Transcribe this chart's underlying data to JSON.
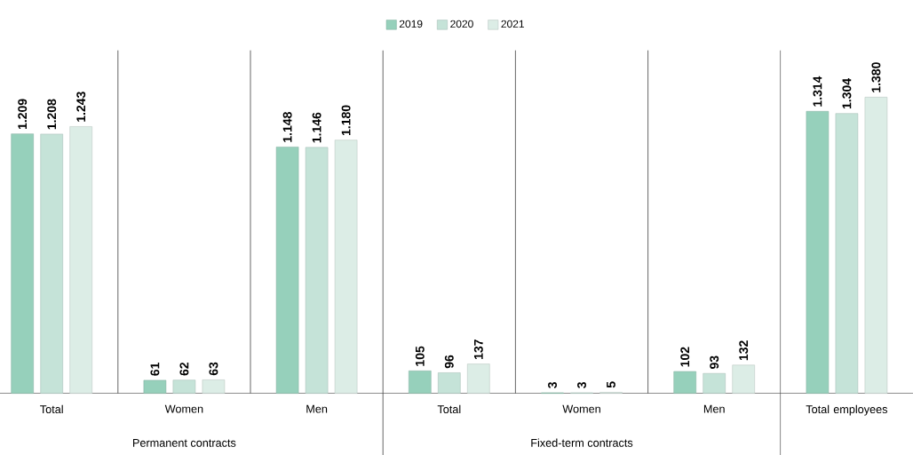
{
  "chart_data": {
    "type": "bar",
    "categories": [
      "Total",
      "Women",
      "Men",
      "Total",
      "Women",
      "Men",
      "Total employees"
    ],
    "series": [
      {
        "name": "2019",
        "color": "#96d0bb",
        "values": [
          1209,
          61,
          1148,
          105,
          3,
          102,
          1314
        ],
        "value_labels": [
          "1.209",
          "61",
          "1.148",
          "105",
          "3",
          "102",
          "1.314"
        ]
      },
      {
        "name": "2020",
        "color": "#c5e3d8",
        "values": [
          1208,
          62,
          1146,
          96,
          3,
          93,
          1304
        ],
        "value_labels": [
          "1.208",
          "62",
          "1.146",
          "96",
          "3",
          "93",
          "1.304"
        ]
      },
      {
        "name": "2021",
        "color": "#dcede6",
        "values": [
          1243,
          63,
          1180,
          137,
          5,
          132,
          1380
        ],
        "value_labels": [
          "1.243",
          "63",
          "1.180",
          "137",
          "5",
          "132",
          "1.380"
        ]
      }
    ],
    "annotations": [
      "Permanent contracts",
      "Fixed-term contracts"
    ],
    "legend": "top"
  }
}
